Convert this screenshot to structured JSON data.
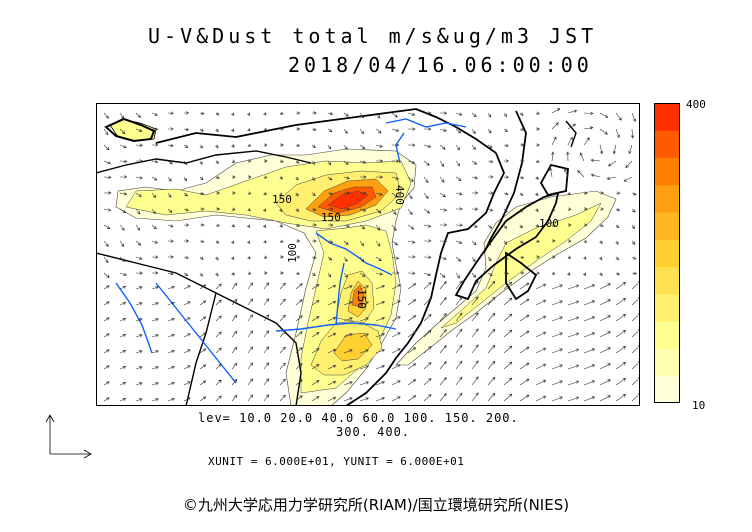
{
  "title_line1": "U-V&Dust total m/s&ug/m3 JST",
  "title_line2": "2018/04/16.06:00:00",
  "colorbar": {
    "max_label": "400",
    "min_label": "10",
    "colors": [
      "#ffffd8",
      "#ffffb0",
      "#ffff90",
      "#fff070",
      "#ffe050",
      "#ffd030",
      "#ffb820",
      "#ffa010",
      "#ff8000",
      "#ff5a00",
      "#ff3000"
    ]
  },
  "contour_labels": [
    "150",
    "400",
    "150",
    "100",
    "100",
    "150"
  ],
  "levels_line1": "lev= 10.0 20.0 40.0 60.0 100. 150. 200.",
  "levels_line2": "300. 400.",
  "units_line": "XUNIT = 6.000E+01, YUNIT = 6.000E+01",
  "credit": "©九州大学応用力学研究所(RIAM)/国立環境研究所(NIES)"
}
